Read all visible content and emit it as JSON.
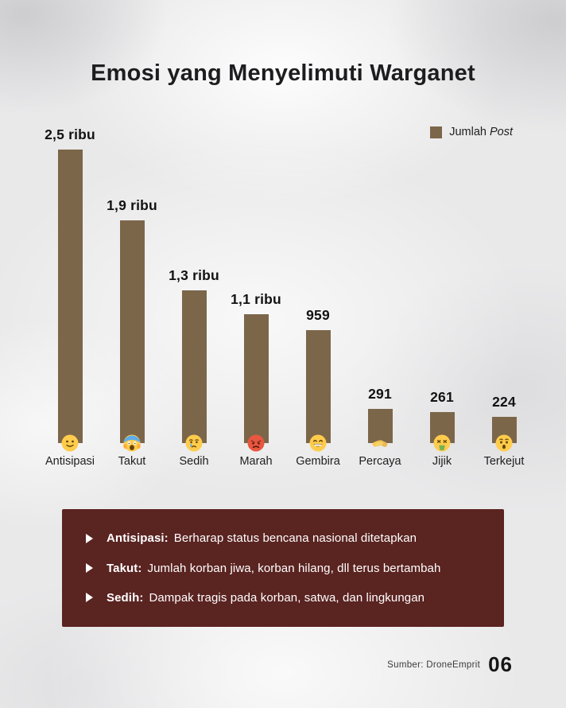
{
  "title": "Emosi yang Menyelimuti Warganet",
  "legend": {
    "label_regular": "Jumlah",
    "label_italic": "Post",
    "swatch_color": "#7c664a"
  },
  "chart_data": {
    "type": "bar",
    "title": "Emosi yang Menyelimuti Warganet",
    "categories": [
      "Antisipasi",
      "Takut",
      "Sedih",
      "Marah",
      "Gembira",
      "Percaya",
      "Jijik",
      "Terkejut"
    ],
    "values": [
      2500,
      1900,
      1300,
      1100,
      959,
      291,
      261,
      224
    ],
    "display_values": [
      "2,5 ribu",
      "1,9 ribu",
      "1,3 ribu",
      "1,1 ribu",
      "959",
      "291",
      "261",
      "224"
    ],
    "emoji_icons": [
      "slightly-smiling-face",
      "face-screaming-in-fear",
      "crying-face",
      "enraged-face",
      "beaming-face",
      "handshake",
      "vomiting-face",
      "astonished-face"
    ],
    "legend": [
      "Jumlah Post"
    ],
    "legend_position": "top-right",
    "bar_color": "#7c664a",
    "ylim": [
      0,
      2500
    ],
    "grid": false,
    "xlabel": "",
    "ylabel": ""
  },
  "notes_panel": {
    "bg_color": "#5a2421",
    "items": [
      {
        "label": "Antisipasi:",
        "text": "Berharap status bencana nasional ditetapkan"
      },
      {
        "label": "Takut:",
        "text": "Jumlah korban jiwa, korban hilang, dll terus bertambah"
      },
      {
        "label": "Sedih:",
        "text": "Dampak tragis pada korban, satwa, dan lingkungan"
      }
    ]
  },
  "footer": {
    "source": "Sumber: DroneEmprit",
    "page_number": "06"
  }
}
